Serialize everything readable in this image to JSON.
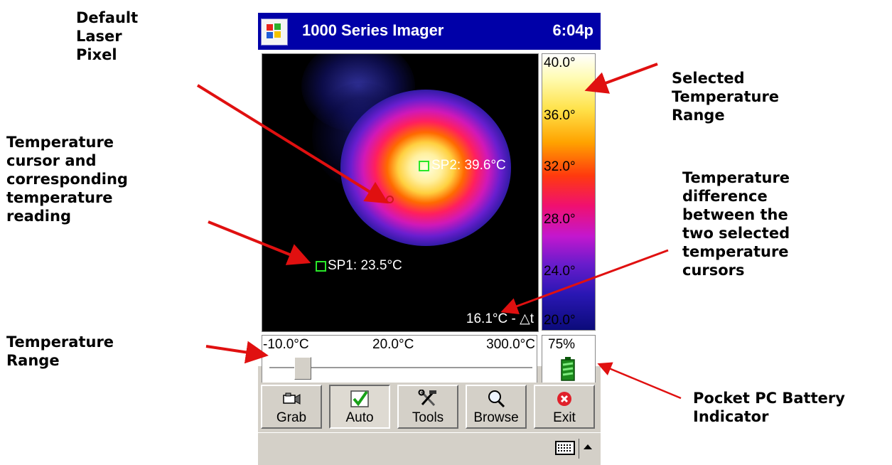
{
  "callouts": {
    "default_laser_pixel": "Default\nLaser\nPixel",
    "temperature_cursor": "Temperature\ncursor and\ncorresponding\ntemperature\nreading",
    "temperature_range": "Temperature\nRange",
    "selected_range": "Selected\nTemperature\nRange",
    "temperature_difference": "Temperature\ndifference\nbetween the\ntwo selected\ntemperature\ncursors",
    "battery_indicator": "Pocket PC Battery\nIndicator"
  },
  "titlebar": {
    "app_title": "1000 Series Imager",
    "clock": "6:04p",
    "start_icon": "windows-flag-icon"
  },
  "image": {
    "sp2_label": "SP2: 39.6°C",
    "sp1_label": "SP1: 23.5°C",
    "delta_label": "16.1°C - △t"
  },
  "color_scale": [
    "40.0°",
    "36.0°",
    "32.0°",
    "28.0°",
    "24.0°",
    "20.0°"
  ],
  "range": {
    "min": "-10.0°C",
    "mid": "20.0°C",
    "max": "300.0°C",
    "slider_position_fraction": 0.1
  },
  "battery": {
    "percent": "75%",
    "icon": "battery-icon"
  },
  "toolbar": {
    "grab": "Grab",
    "auto": "Auto",
    "tools": "Tools",
    "browse": "Browse",
    "exit": "Exit"
  },
  "colors": {
    "titlebar": "#0000a8",
    "cursor": "#29e829",
    "laser": "#d01818",
    "arrow": "#e01010"
  }
}
